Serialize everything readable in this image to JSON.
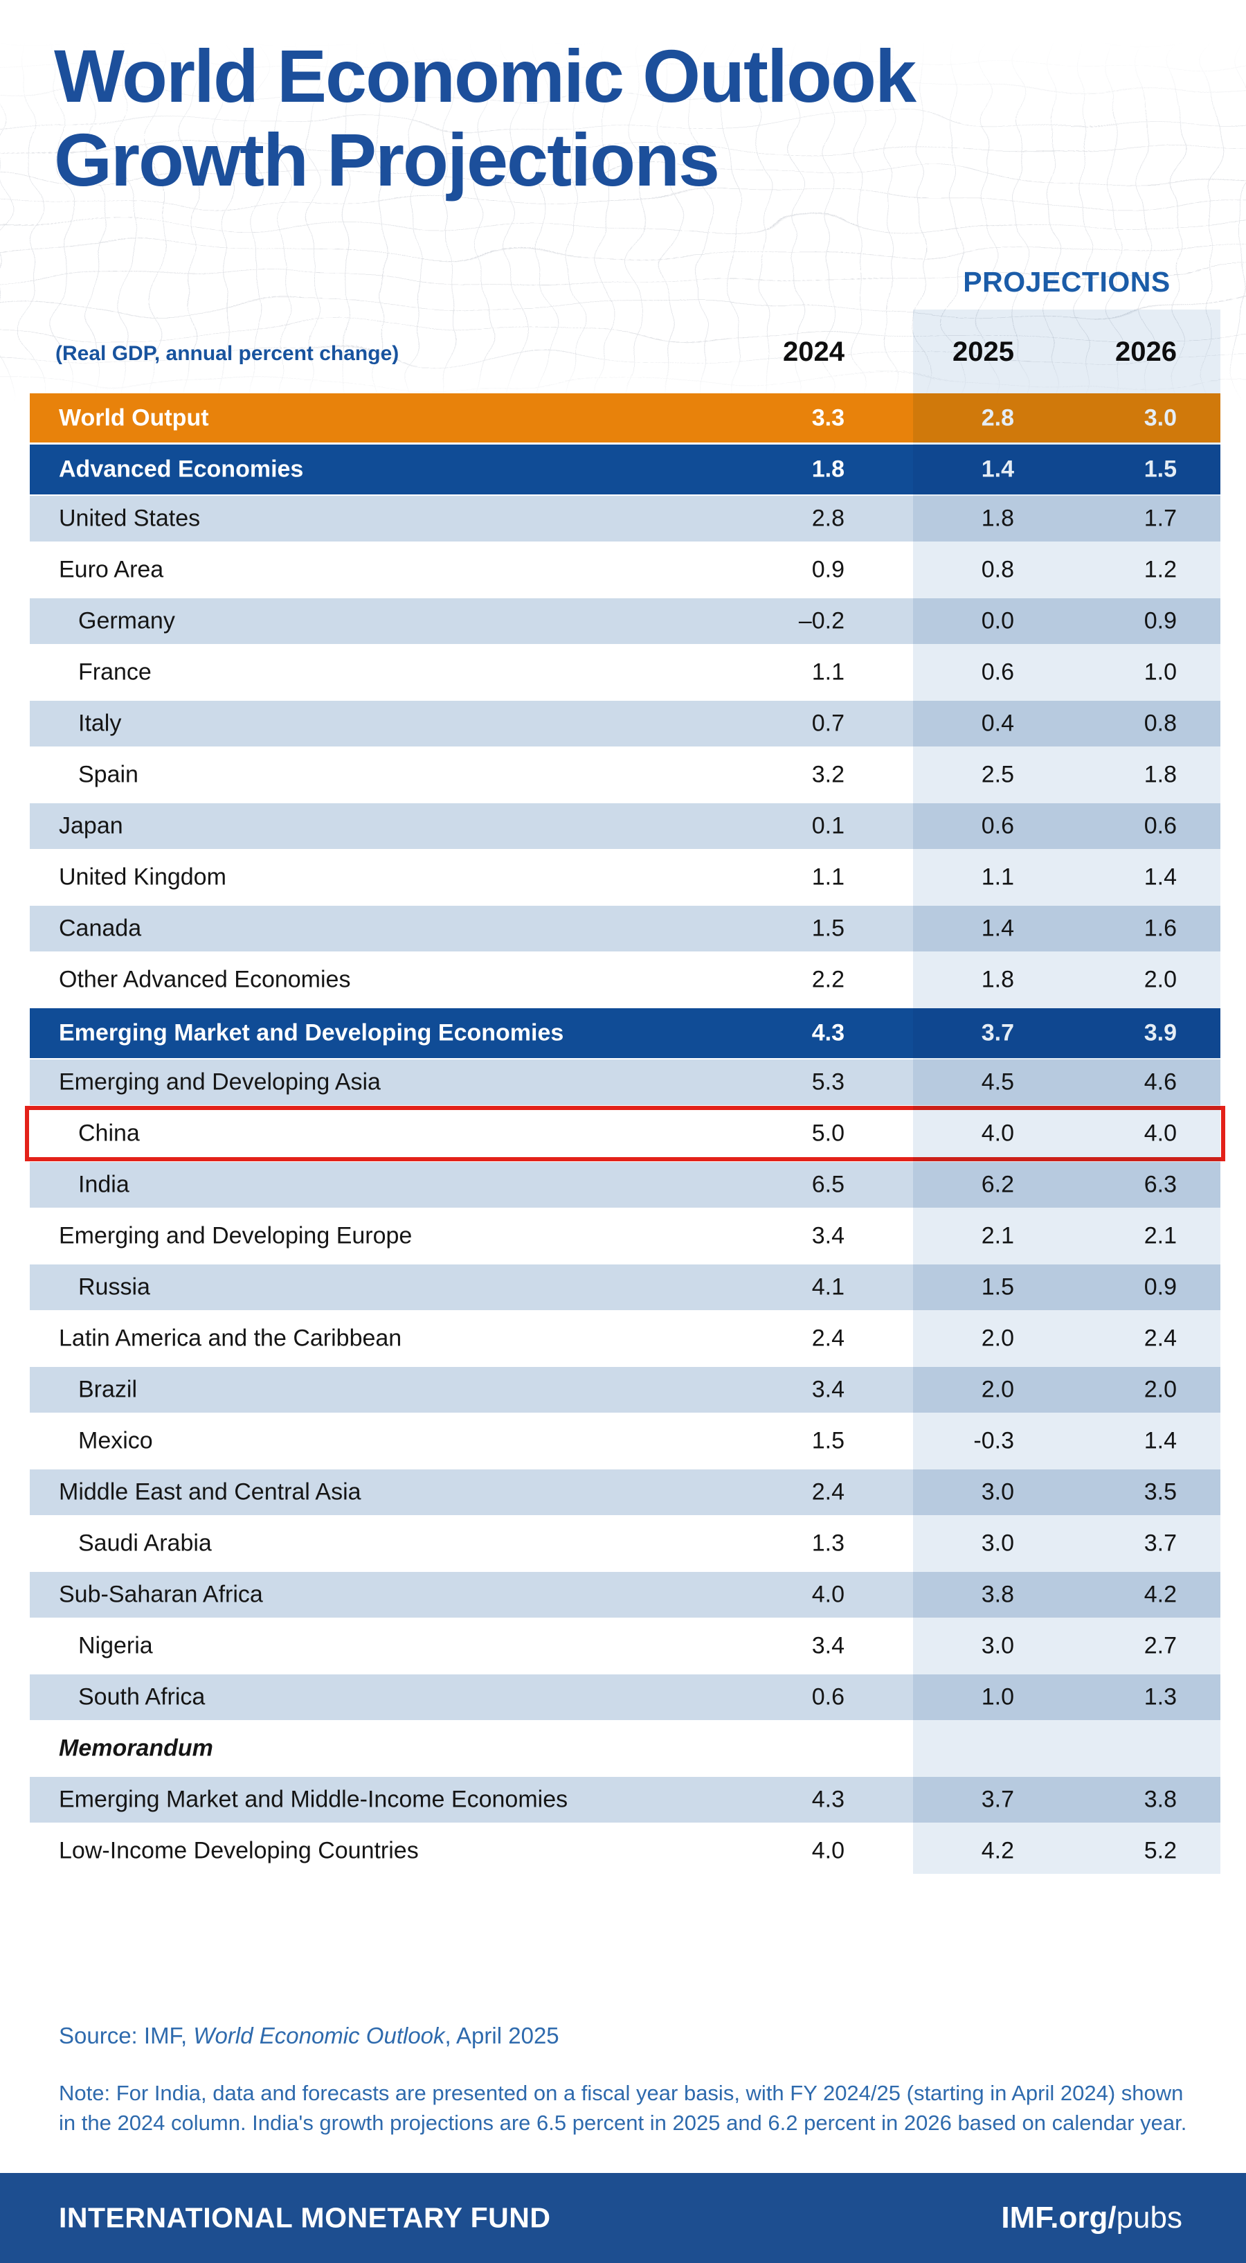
{
  "title": {
    "line1": "World Economic Outlook",
    "line2": "Growth Projections"
  },
  "table": {
    "projections_label": "PROJECTIONS",
    "unit_label": "(Real GDP, annual percent change)",
    "years": [
      "2024",
      "2025",
      "2026"
    ],
    "rows": [
      {
        "label": "World Output",
        "values": [
          "3.3",
          "2.8",
          "3.0"
        ],
        "type": "world",
        "indent": false,
        "stripe": false,
        "highlight": false
      },
      {
        "label": "Advanced Economies",
        "values": [
          "1.8",
          "1.4",
          "1.5"
        ],
        "type": "section",
        "indent": false,
        "stripe": false,
        "highlight": false
      },
      {
        "label": "United States",
        "values": [
          "2.8",
          "1.8",
          "1.7"
        ],
        "type": "data",
        "indent": false,
        "stripe": true,
        "highlight": false
      },
      {
        "label": "Euro Area",
        "values": [
          "0.9",
          "0.8",
          "1.2"
        ],
        "type": "data",
        "indent": false,
        "stripe": false,
        "highlight": false
      },
      {
        "label": "Germany",
        "values": [
          "–0.2",
          "0.0",
          "0.9"
        ],
        "type": "data",
        "indent": true,
        "stripe": true,
        "highlight": false
      },
      {
        "label": "France",
        "values": [
          "1.1",
          "0.6",
          "1.0"
        ],
        "type": "data",
        "indent": true,
        "stripe": false,
        "highlight": false
      },
      {
        "label": "Italy",
        "values": [
          "0.7",
          "0.4",
          "0.8"
        ],
        "type": "data",
        "indent": true,
        "stripe": true,
        "highlight": false
      },
      {
        "label": "Spain",
        "values": [
          "3.2",
          "2.5",
          "1.8"
        ],
        "type": "data",
        "indent": true,
        "stripe": false,
        "highlight": false
      },
      {
        "label": "Japan",
        "values": [
          "0.1",
          "0.6",
          "0.6"
        ],
        "type": "data",
        "indent": false,
        "stripe": true,
        "highlight": false
      },
      {
        "label": "United Kingdom",
        "values": [
          "1.1",
          "1.1",
          "1.4"
        ],
        "type": "data",
        "indent": false,
        "stripe": false,
        "highlight": false
      },
      {
        "label": "Canada",
        "values": [
          "1.5",
          "1.4",
          "1.6"
        ],
        "type": "data",
        "indent": false,
        "stripe": true,
        "highlight": false
      },
      {
        "label": "Other Advanced Economies",
        "values": [
          "2.2",
          "1.8",
          "2.0"
        ],
        "type": "data",
        "indent": false,
        "stripe": false,
        "highlight": false
      },
      {
        "label": "Emerging Market and Developing Economies",
        "values": [
          "4.3",
          "3.7",
          "3.9"
        ],
        "type": "section",
        "indent": false,
        "stripe": false,
        "highlight": false
      },
      {
        "label": "Emerging and Developing Asia",
        "values": [
          "5.3",
          "4.5",
          "4.6"
        ],
        "type": "data",
        "indent": false,
        "stripe": true,
        "highlight": false
      },
      {
        "label": "China",
        "values": [
          "5.0",
          "4.0",
          "4.0"
        ],
        "type": "data",
        "indent": true,
        "stripe": false,
        "highlight": true
      },
      {
        "label": "India",
        "values": [
          "6.5",
          "6.2",
          "6.3"
        ],
        "type": "data",
        "indent": true,
        "stripe": true,
        "highlight": false
      },
      {
        "label": "Emerging and Developing Europe",
        "values": [
          "3.4",
          "2.1",
          "2.1"
        ],
        "type": "data",
        "indent": false,
        "stripe": false,
        "highlight": false
      },
      {
        "label": "Russia",
        "values": [
          "4.1",
          "1.5",
          "0.9"
        ],
        "type": "data",
        "indent": true,
        "stripe": true,
        "highlight": false
      },
      {
        "label": "Latin America and the Caribbean",
        "values": [
          "2.4",
          "2.0",
          "2.4"
        ],
        "type": "data",
        "indent": false,
        "stripe": false,
        "highlight": false
      },
      {
        "label": "Brazil",
        "values": [
          "3.4",
          "2.0",
          "2.0"
        ],
        "type": "data",
        "indent": true,
        "stripe": true,
        "highlight": false
      },
      {
        "label": "Mexico",
        "values": [
          "1.5",
          "-0.3",
          "1.4"
        ],
        "type": "data",
        "indent": true,
        "stripe": false,
        "highlight": false
      },
      {
        "label": "Middle East and Central Asia",
        "values": [
          "2.4",
          "3.0",
          "3.5"
        ],
        "type": "data",
        "indent": false,
        "stripe": true,
        "highlight": false
      },
      {
        "label": "Saudi Arabia",
        "values": [
          "1.3",
          "3.0",
          "3.7"
        ],
        "type": "data",
        "indent": true,
        "stripe": false,
        "highlight": false
      },
      {
        "label": "Sub-Saharan Africa",
        "values": [
          "4.0",
          "3.8",
          "4.2"
        ],
        "type": "data",
        "indent": false,
        "stripe": true,
        "highlight": false
      },
      {
        "label": "Nigeria",
        "values": [
          "3.4",
          "3.0",
          "2.7"
        ],
        "type": "data",
        "indent": true,
        "stripe": false,
        "highlight": false
      },
      {
        "label": "South Africa",
        "values": [
          "0.6",
          "1.0",
          "1.3"
        ],
        "type": "data",
        "indent": true,
        "stripe": true,
        "highlight": false
      },
      {
        "label": "Memorandum",
        "values": null,
        "type": "memo",
        "indent": false,
        "stripe": false,
        "highlight": false
      },
      {
        "label": "Emerging Market and Middle-Income Economies",
        "values": [
          "4.3",
          "3.7",
          "3.8"
        ],
        "type": "data",
        "indent": false,
        "stripe": true,
        "highlight": false
      },
      {
        "label": "Low-Income Developing Countries",
        "values": [
          "4.0",
          "4.2",
          "5.2"
        ],
        "type": "data",
        "indent": false,
        "stripe": false,
        "highlight": false
      }
    ]
  },
  "chart_data": {
    "type": "table",
    "title": "World Economic Outlook Growth Projections",
    "subtitle": "(Real GDP, annual percent change)",
    "columns": [
      "2024",
      "2025",
      "2026"
    ],
    "projection_columns": [
      "2025",
      "2026"
    ],
    "highlighted_row": "China",
    "rows": [
      {
        "label": "World Output",
        "values": [
          3.3,
          2.8,
          3.0
        ]
      },
      {
        "label": "Advanced Economies",
        "values": [
          1.8,
          1.4,
          1.5
        ]
      },
      {
        "label": "United States",
        "values": [
          2.8,
          1.8,
          1.7
        ]
      },
      {
        "label": "Euro Area",
        "values": [
          0.9,
          0.8,
          1.2
        ]
      },
      {
        "label": "Germany",
        "values": [
          -0.2,
          0.0,
          0.9
        ]
      },
      {
        "label": "France",
        "values": [
          1.1,
          0.6,
          1.0
        ]
      },
      {
        "label": "Italy",
        "values": [
          0.7,
          0.4,
          0.8
        ]
      },
      {
        "label": "Spain",
        "values": [
          3.2,
          2.5,
          1.8
        ]
      },
      {
        "label": "Japan",
        "values": [
          0.1,
          0.6,
          0.6
        ]
      },
      {
        "label": "United Kingdom",
        "values": [
          1.1,
          1.1,
          1.4
        ]
      },
      {
        "label": "Canada",
        "values": [
          1.5,
          1.4,
          1.6
        ]
      },
      {
        "label": "Other Advanced Economies",
        "values": [
          2.2,
          1.8,
          2.0
        ]
      },
      {
        "label": "Emerging Market and Developing Economies",
        "values": [
          4.3,
          3.7,
          3.9
        ]
      },
      {
        "label": "Emerging and Developing Asia",
        "values": [
          5.3,
          4.5,
          4.6
        ]
      },
      {
        "label": "China",
        "values": [
          5.0,
          4.0,
          4.0
        ]
      },
      {
        "label": "India",
        "values": [
          6.5,
          6.2,
          6.3
        ]
      },
      {
        "label": "Emerging and Developing Europe",
        "values": [
          3.4,
          2.1,
          2.1
        ]
      },
      {
        "label": "Russia",
        "values": [
          4.1,
          1.5,
          0.9
        ]
      },
      {
        "label": "Latin America and the Caribbean",
        "values": [
          2.4,
          2.0,
          2.4
        ]
      },
      {
        "label": "Brazil",
        "values": [
          3.4,
          2.0,
          2.0
        ]
      },
      {
        "label": "Mexico",
        "values": [
          1.5,
          -0.3,
          1.4
        ]
      },
      {
        "label": "Middle East and Central Asia",
        "values": [
          2.4,
          3.0,
          3.5
        ]
      },
      {
        "label": "Saudi Arabia",
        "values": [
          1.3,
          3.0,
          3.7
        ]
      },
      {
        "label": "Sub-Saharan Africa",
        "values": [
          4.0,
          3.8,
          4.2
        ]
      },
      {
        "label": "Nigeria",
        "values": [
          3.4,
          3.0,
          2.7
        ]
      },
      {
        "label": "South Africa",
        "values": [
          0.6,
          1.0,
          1.3
        ]
      },
      {
        "label": "Emerging Market and Middle-Income Economies",
        "values": [
          4.3,
          3.7,
          3.8
        ]
      },
      {
        "label": "Low-Income Developing Countries",
        "values": [
          4.0,
          4.2,
          5.2
        ]
      }
    ]
  },
  "footnotes": {
    "source_prefix": "Source: IMF, ",
    "source_italic": "World Economic Outlook",
    "source_suffix": ", April 2025",
    "note": "Note: For India, data and forecasts are presented on a fiscal year basis, with FY 2024/25 (starting in April 2024) shown in the 2024 column. India's growth projections are 6.5 percent in 2025 and 6.2 percent in 2026 based on calendar year."
  },
  "footer": {
    "org": "INTERNATIONAL MONETARY FUND",
    "site_bold": "IMF.org/",
    "site_regular": "pubs"
  },
  "colors": {
    "title_blue": "#1C4F9B",
    "projections_label_blue": "#1B5CA8",
    "world_output_orange": "#E8820B",
    "section_header_blue": "#104C96",
    "stripe_row_blue": "#CCDAE9",
    "projection_band_tint": "#E5EDF5",
    "highlight_red": "#E32119",
    "footer_bar_blue": "#1D4E90",
    "note_text_blue": "#2E6AAD"
  }
}
